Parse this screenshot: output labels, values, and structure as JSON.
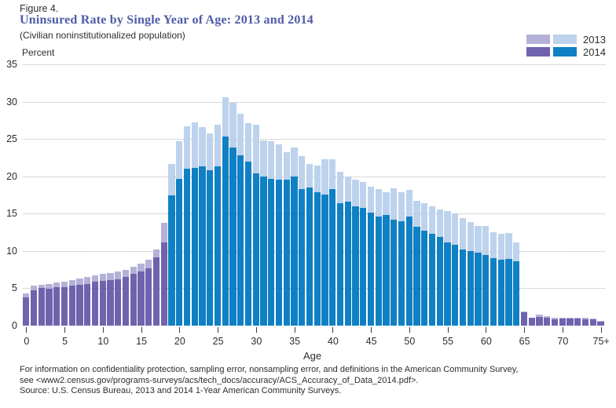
{
  "header": {
    "figure_label": "Figure 4.",
    "title": "Uninsured Rate by Single Year of Age: 2013 and 2014",
    "subtitle": "(Civilian noninstitutionalized population)"
  },
  "legend": {
    "rows": [
      {
        "label": "2013",
        "purple_swatch": "#b4b1d8",
        "blue_swatch": "#bdd2ec"
      },
      {
        "label": "2014",
        "purple_swatch": "#6f63ae",
        "blue_swatch": "#1080c4"
      }
    ]
  },
  "axes": {
    "y_title": "Percent",
    "x_title": "Age",
    "y_ticks": [
      0,
      5,
      10,
      15,
      20,
      25,
      30,
      35
    ],
    "x_tick_labels": [
      "0",
      "5",
      "10",
      "15",
      "20",
      "25",
      "30",
      "35",
      "40",
      "45",
      "50",
      "55",
      "60",
      "65",
      "70",
      "75+"
    ]
  },
  "footnotes": [
    "For information on confidentiality protection, sampling error, nonsampling error, and definitions in the American Community Survey,",
    "see <www2.census.gov/programs-surveys/acs/tech_docs/accuracy/ACS_Accuracy_of_Data_2014.pdf>.",
    "Source: U.S. Census Bureau, 2013 and 2014 1-Year American Community Surveys."
  ],
  "chart_data": {
    "type": "bar",
    "title": "Uninsured Rate by Single Year of Age: 2013 and 2014",
    "subtitle": "(Civilian noninstitutionalized population)",
    "xlabel": "Age",
    "ylabel": "Percent",
    "ylim": [
      0,
      35
    ],
    "ytick_interval": 5,
    "grid": "horizontal-dotted",
    "legend_position": "top-right",
    "categories": [
      "0",
      "1",
      "2",
      "3",
      "4",
      "5",
      "6",
      "7",
      "8",
      "9",
      "10",
      "11",
      "12",
      "13",
      "14",
      "15",
      "16",
      "17",
      "18",
      "19",
      "20",
      "21",
      "22",
      "23",
      "24",
      "25",
      "26",
      "27",
      "28",
      "29",
      "30",
      "31",
      "32",
      "33",
      "34",
      "35",
      "36",
      "37",
      "38",
      "39",
      "40",
      "41",
      "42",
      "43",
      "44",
      "45",
      "46",
      "47",
      "48",
      "49",
      "50",
      "51",
      "52",
      "53",
      "54",
      "55",
      "56",
      "57",
      "58",
      "59",
      "60",
      "61",
      "62",
      "63",
      "64",
      "65",
      "66",
      "67",
      "68",
      "69",
      "70",
      "71",
      "72",
      "73",
      "74",
      "75+"
    ],
    "series": [
      {
        "name": "2013",
        "values": [
          4.3,
          5.4,
          5.5,
          5.6,
          5.8,
          5.9,
          6.1,
          6.3,
          6.5,
          6.7,
          6.9,
          7.0,
          7.2,
          7.5,
          7.9,
          8.3,
          8.8,
          10.2,
          13.8,
          21.7,
          24.7,
          26.7,
          27.2,
          26.6,
          25.7,
          26.9,
          30.6,
          29.8,
          28.4,
          27.1,
          26.9,
          24.8,
          24.7,
          24.3,
          23.2,
          23.9,
          22.7,
          21.6,
          21.4,
          22.3,
          22.3,
          20.6,
          20.0,
          19.5,
          19.2,
          18.6,
          18.3,
          17.9,
          18.4,
          17.9,
          18.2,
          16.7,
          16.4,
          16.0,
          15.6,
          15.3,
          15.0,
          14.4,
          13.9,
          13.4,
          13.3,
          12.5,
          12.3,
          12.4,
          11.1,
          1.9,
          1.1,
          1.5,
          1.3,
          1.0,
          1.1,
          1.0,
          1.1,
          1.0,
          0.9,
          0.6
        ]
      },
      {
        "name": "2014",
        "values": [
          3.8,
          4.7,
          5.0,
          4.9,
          5.1,
          5.2,
          5.4,
          5.5,
          5.6,
          5.9,
          6.0,
          6.1,
          6.2,
          6.5,
          6.9,
          7.2,
          7.7,
          9.1,
          11.1,
          17.5,
          19.7,
          21.0,
          21.1,
          21.3,
          20.8,
          21.3,
          25.3,
          23.9,
          22.8,
          22.0,
          20.4,
          20.0,
          19.7,
          19.5,
          19.5,
          20.0,
          18.3,
          18.5,
          17.9,
          17.6,
          18.3,
          16.4,
          16.6,
          16.0,
          15.8,
          15.1,
          14.6,
          14.8,
          14.2,
          14.0,
          14.6,
          13.2,
          12.7,
          12.3,
          11.9,
          11.1,
          10.8,
          10.2,
          10.0,
          9.8,
          9.5,
          9.0,
          8.8,
          8.9,
          8.6,
          1.8,
          1.0,
          1.2,
          1.1,
          0.8,
          0.9,
          0.9,
          0.9,
          0.8,
          0.8,
          0.5
        ]
      }
    ],
    "age_color_groups": [
      {
        "range": [
          0,
          18
        ],
        "palette": "purple"
      },
      {
        "range": [
          19,
          64
        ],
        "palette": "blue"
      },
      {
        "range": [
          65,
          75
        ],
        "palette": "purple"
      }
    ],
    "colors": {
      "purple_2013": "#b4b1d8",
      "purple_2014": "#6f63ae",
      "blue_2013": "#bdd2ec",
      "blue_2014": "#1080c4"
    }
  }
}
